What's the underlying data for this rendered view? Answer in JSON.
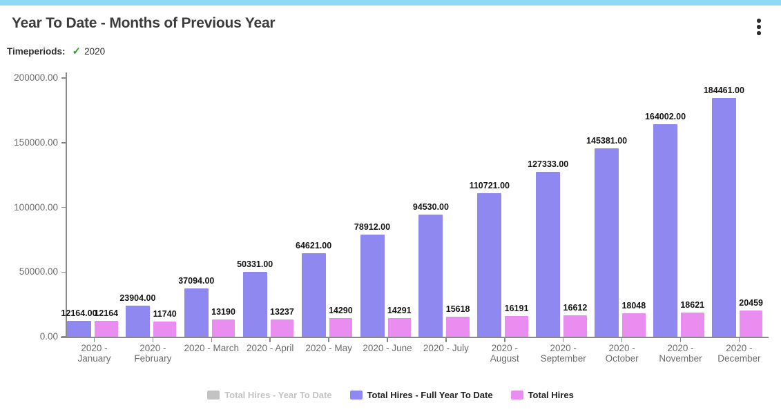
{
  "window": {
    "topbar_color": "#8edaf5"
  },
  "header": {
    "title": "Year To Date - Months of Previous Year",
    "menu_icon": "kebab-menu-icon"
  },
  "filters": {
    "label": "Timeperiods:",
    "check_icon": "✓",
    "check_color": "#25a52d",
    "value": "2020"
  },
  "chart_data": {
    "type": "bar",
    "title": "Year To Date - Months of Previous Year",
    "categories": [
      "2020 -\nJanuary",
      "2020 -\nFebruary",
      "2020 - March",
      "2020 - April",
      "2020 - May",
      "2020 - June",
      "2020 - July",
      "2020 -\nAugust",
      "2020 -\nSeptember",
      "2020 -\nOctober",
      "2020 -\nNovember",
      "2020 -\nDecember"
    ],
    "series": [
      {
        "name": "Total Hires - Year To Date",
        "color": "#c9c9c9",
        "visible": false,
        "values": [],
        "labels": []
      },
      {
        "name": "Total Hires - Full Year To Date",
        "color": "#8f88f0",
        "visible": true,
        "values": [
          12164,
          23904,
          37094,
          50331,
          64621,
          78912,
          94530,
          110721,
          127333,
          145381,
          164002,
          184461
        ],
        "labels": [
          "12164.00",
          "23904.00",
          "37094.00",
          "50331.00",
          "64621.00",
          "78912.00",
          "94530.00",
          "110721.00",
          "127333.00",
          "145381.00",
          "164002.00",
          "184461.00"
        ]
      },
      {
        "name": "Total Hires",
        "color": "#e98df0",
        "visible": true,
        "values": [
          12164,
          11740,
          13190,
          13237,
          14290,
          14291,
          15618,
          16191,
          16612,
          18048,
          18621,
          20459
        ],
        "labels": [
          "12164",
          "11740",
          "13190",
          "13237",
          "14290",
          "14291",
          "15618",
          "16191",
          "16612",
          "18048",
          "18621",
          "20459"
        ]
      }
    ],
    "y_axis": {
      "ticks": [
        {
          "label": "0.00",
          "value": 0
        },
        {
          "label": "50000.00",
          "value": 50000
        },
        {
          "label": "100000.00",
          "value": 100000
        },
        {
          "label": "150000.00",
          "value": 150000
        },
        {
          "label": "200000.00",
          "value": 200000
        }
      ]
    },
    "ylim": [
      0,
      200000
    ],
    "xlabel": "",
    "ylabel": "",
    "grid": false,
    "legend_position": "bottom"
  },
  "legend": {
    "enabled_text_color": "#1f1f1f",
    "disabled_text_color": "#c3c3c3"
  }
}
